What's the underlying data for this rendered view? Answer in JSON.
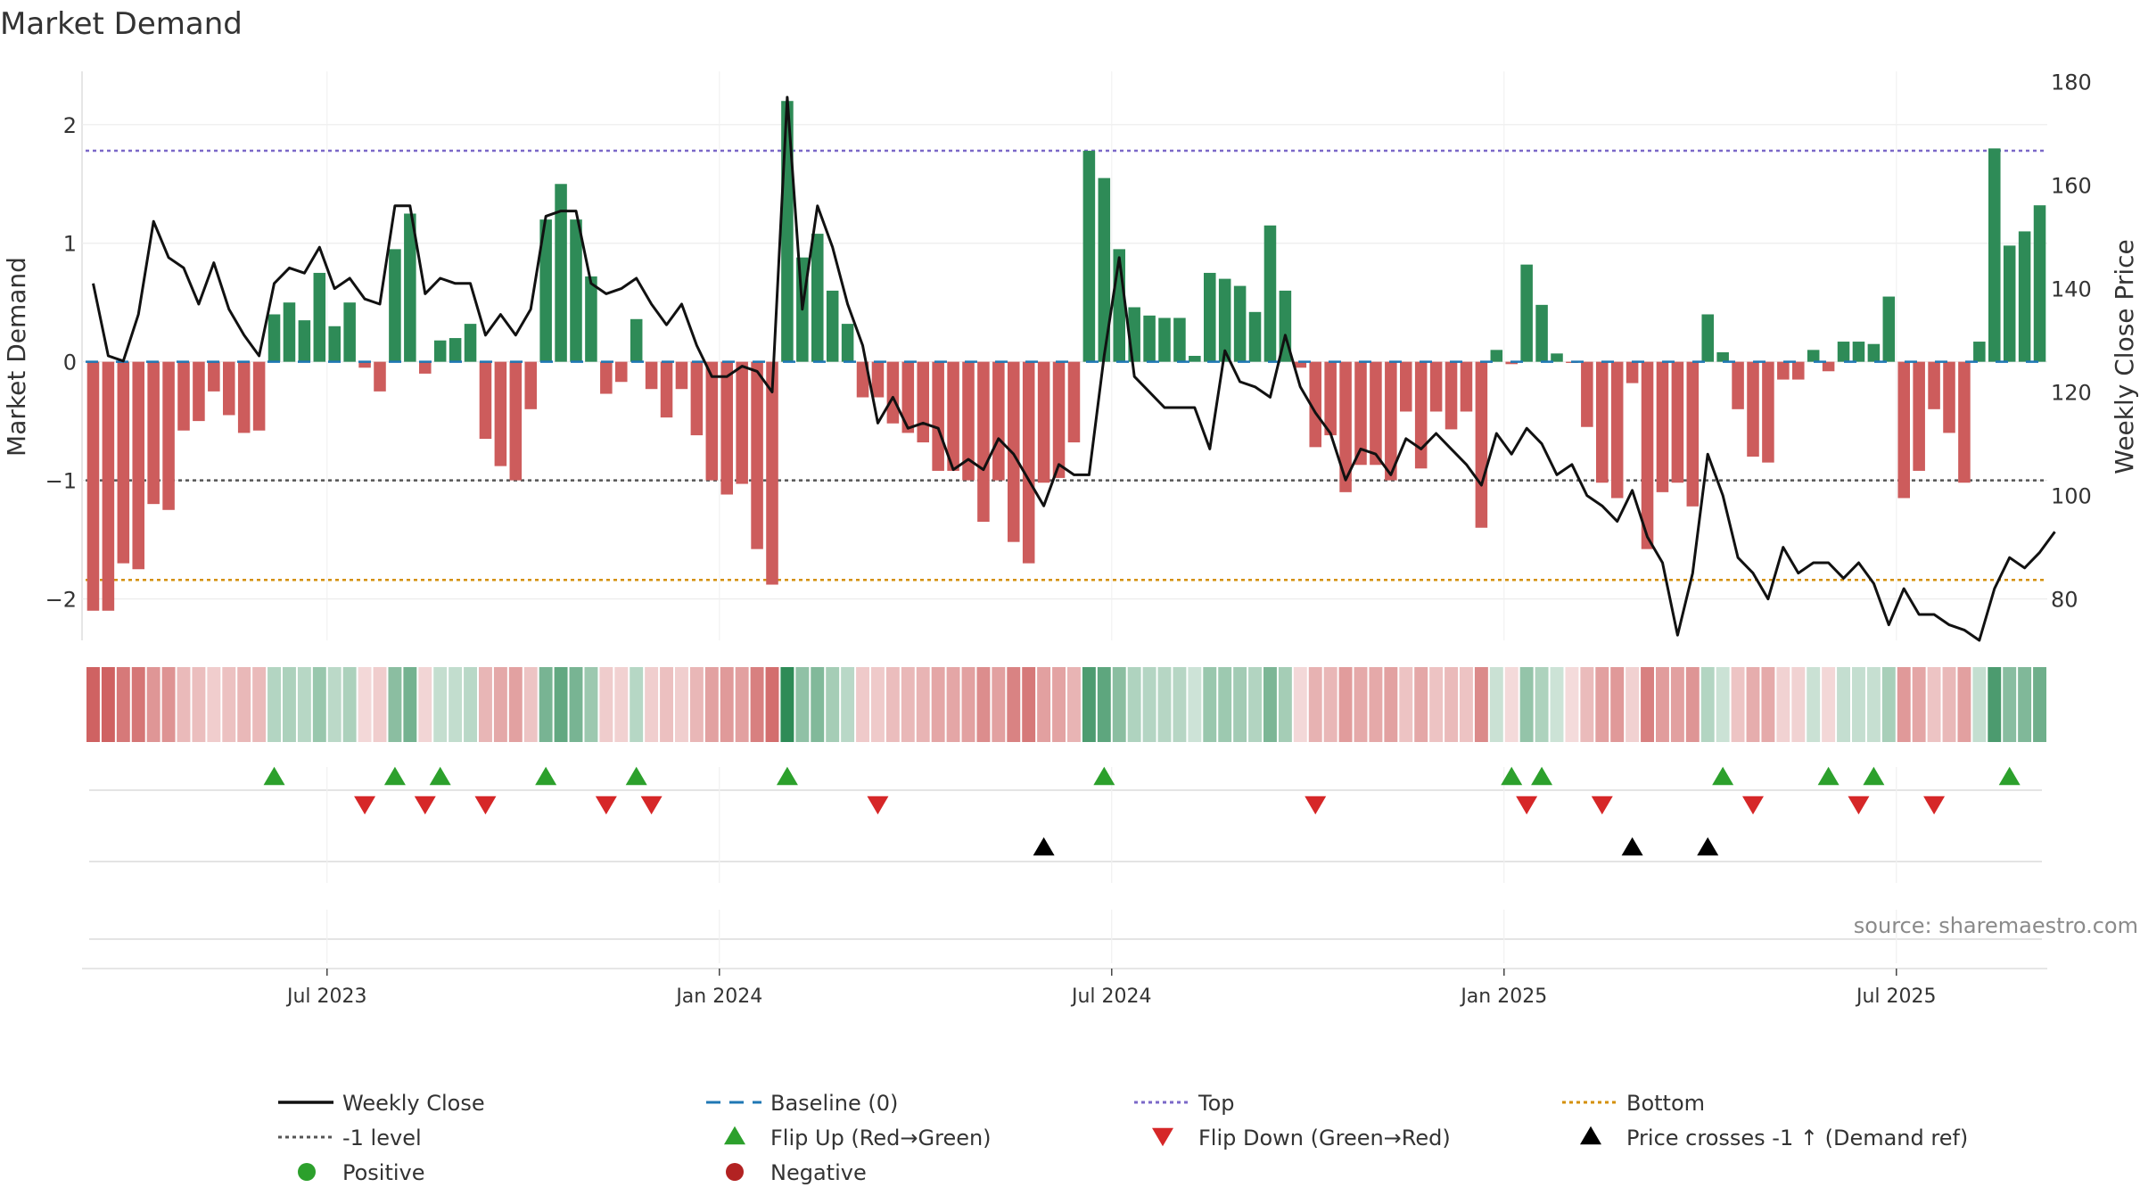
{
  "chart_data": {
    "type": "bar",
    "title": "Market Demand",
    "ylabel": "Market Demand",
    "y2label": "Weekly Close Price",
    "ylim": [
      -2.35,
      2.45
    ],
    "y2lim": [
      72,
      182
    ],
    "yticks": [
      -2,
      -1,
      0,
      1,
      2
    ],
    "y2ticks": [
      80,
      100,
      120,
      140,
      160,
      180
    ],
    "x_ticks": [
      {
        "label": "Jul 2023",
        "week": 16
      },
      {
        "label": "Jan 2024",
        "week": 42
      },
      {
        "label": "Jul 2024",
        "week": 68
      },
      {
        "label": "Jan 2025",
        "week": 94
      },
      {
        "label": "Jul 2025",
        "week": 120
      }
    ],
    "reference_lines": {
      "top": 1.78,
      "bottom": -1.84,
      "minus_one": -1.0,
      "baseline": 0
    },
    "demand": [
      -2.1,
      -2.1,
      -1.7,
      -1.75,
      -1.2,
      -1.25,
      -0.58,
      -0.5,
      -0.25,
      -0.45,
      -0.6,
      -0.58,
      0.4,
      0.5,
      0.35,
      0.75,
      0.3,
      0.5,
      -0.05,
      -0.25,
      0.95,
      1.25,
      -0.1,
      0.18,
      0.2,
      0.32,
      -0.65,
      -0.88,
      -1.0,
      -0.4,
      1.2,
      1.5,
      1.2,
      0.72,
      -0.27,
      -0.17,
      0.36,
      -0.23,
      -0.47,
      -0.23,
      -0.62,
      -1.0,
      -1.12,
      -1.03,
      -1.58,
      -1.88,
      2.2,
      0.88,
      1.08,
      0.6,
      0.32,
      -0.3,
      -0.3,
      -0.52,
      -0.6,
      -0.68,
      -0.92,
      -0.92,
      -1.0,
      -1.35,
      -1.0,
      -1.52,
      -1.7,
      -1.02,
      -0.98,
      -0.68,
      1.78,
      1.55,
      0.95,
      0.46,
      0.39,
      0.37,
      0.37,
      0.05,
      0.75,
      0.7,
      0.64,
      0.42,
      1.15,
      0.6,
      -0.05,
      -0.72,
      -0.62,
      -1.1,
      -0.87,
      -0.87,
      -1.0,
      -0.42,
      -0.9,
      -0.42,
      -0.57,
      -0.42,
      -1.4,
      0.1,
      -0.02,
      0.82,
      0.48,
      0.07,
      -0.01,
      -0.55,
      -1.02,
      -1.15,
      -0.18,
      -1.58,
      -1.1,
      -1.02,
      -1.22,
      0.4,
      0.08,
      -0.4,
      -0.8,
      -0.85,
      -0.15,
      -0.15,
      0.1,
      -0.08,
      0.17,
      0.17,
      0.15,
      0.55,
      -1.15,
      -0.92,
      -0.4,
      -0.6,
      -1.02,
      0.17,
      1.8,
      0.98,
      1.1,
      1.32
    ],
    "weekly_close": [
      141,
      127,
      126,
      135,
      153,
      146,
      144,
      137,
      145,
      136,
      131,
      127,
      141,
      144,
      143,
      148,
      140,
      142,
      138,
      137,
      156,
      156,
      139,
      142,
      141,
      141,
      131,
      135,
      131,
      136,
      154,
      155,
      155,
      141,
      139,
      140,
      142,
      137,
      133,
      137,
      129,
      123,
      123,
      125,
      124,
      120,
      177,
      136,
      156,
      148,
      137,
      129,
      114,
      119,
      113,
      114,
      113,
      105,
      107,
      105,
      111,
      108,
      103,
      98,
      106,
      104,
      104,
      127,
      146,
      123,
      120,
      117,
      117,
      117,
      109,
      128,
      122,
      121,
      119,
      131,
      121,
      116,
      112,
      103,
      109,
      108,
      104,
      111,
      109,
      112,
      109,
      106,
      102,
      112,
      108,
      113,
      110,
      104,
      106,
      100,
      98,
      95,
      101,
      92,
      87,
      73,
      85,
      108,
      100,
      88,
      85,
      80,
      90,
      85,
      87,
      87,
      84,
      87,
      83,
      75,
      82,
      77,
      77,
      75,
      74,
      72,
      82,
      88,
      86,
      89,
      93
    ],
    "flip_up_weeks": [
      12,
      20,
      23,
      30,
      36,
      46,
      67,
      94,
      96,
      108,
      115,
      118,
      127
    ],
    "flip_down_weeks": [
      18,
      22,
      26,
      34,
      37,
      52,
      81,
      95,
      100,
      110,
      117,
      122
    ],
    "price_cross_weeks": [
      63,
      102,
      107
    ],
    "colors": {
      "positive_bar": "#2e8b57",
      "negative_bar": "#cd5c5c",
      "price_line": "#111111",
      "baseline": "#1f77b4",
      "top_line": "#7b68c8",
      "bottom_line": "#d4900a",
      "minus_one_line": "#555555",
      "flip_up": "#2ca02c",
      "flip_down": "#d62728",
      "price_cross": "#000000",
      "positive_dot": "#2ca02c",
      "negative_dot": "#b22222"
    },
    "legend": [
      {
        "label": "Weekly Close",
        "kind": "line",
        "color": "#111111"
      },
      {
        "label": "Baseline (0)",
        "kind": "dash",
        "color": "#1f77b4"
      },
      {
        "label": "Top",
        "kind": "dot",
        "color": "#7b68c8"
      },
      {
        "label": "Bottom",
        "kind": "dot",
        "color": "#d4900a"
      },
      {
        "label": "-1 level",
        "kind": "dot",
        "color": "#555555"
      },
      {
        "label": "Flip Up (Red→Green)",
        "kind": "tri-up",
        "color": "#2ca02c"
      },
      {
        "label": "Flip Down (Green→Red)",
        "kind": "tri-down",
        "color": "#d62728"
      },
      {
        "label": "Price crosses -1 ↑ (Demand ref)",
        "kind": "tri-up",
        "color": "#000000"
      },
      {
        "label": "Positive",
        "kind": "circle",
        "color": "#2ca02c"
      },
      {
        "label": "Negative",
        "kind": "circle",
        "color": "#b22222"
      }
    ],
    "legend_position": "bottom",
    "source": "source: sharemaestro.com"
  }
}
